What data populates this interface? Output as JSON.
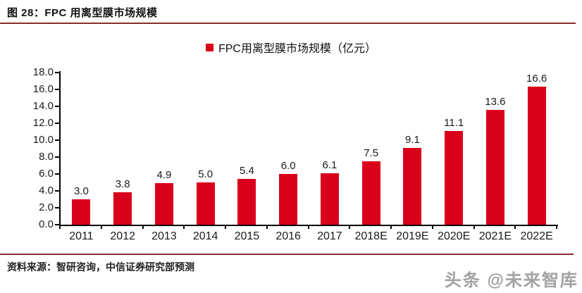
{
  "header": {
    "title": "图 28：FPC 用离型膜市场规模"
  },
  "legend": {
    "label": "FPC用离型膜市场规模（亿元）"
  },
  "chart_data": {
    "type": "bar",
    "title": "FPC用离型膜市场规模（亿元）",
    "categories": [
      "2011",
      "2012",
      "2013",
      "2014",
      "2015",
      "2016",
      "2017",
      "2018E",
      "2019E",
      "2020E",
      "2021E",
      "2022E"
    ],
    "values": [
      3.0,
      3.8,
      4.9,
      5.0,
      5.4,
      6.0,
      6.1,
      7.5,
      9.1,
      11.1,
      13.6,
      16.6
    ],
    "value_labels": [
      "3.0",
      "3.8",
      "4.9",
      "5.0",
      "5.4",
      "6.0",
      "6.1",
      "7.5",
      "9.1",
      "11.1",
      "13.6",
      "16.6"
    ],
    "xlabel": "",
    "ylabel": "",
    "ylim": [
      0,
      18
    ],
    "y_tick_step": 2,
    "y_tick_labels": [
      "0.0",
      "2.0",
      "4.0",
      "6.0",
      "8.0",
      "10.0",
      "12.0",
      "14.0",
      "16.0",
      "18.0"
    ],
    "grid": false,
    "legend_position": "top-center",
    "bar_color": "#d9001b"
  },
  "footer": {
    "source": "资料来源：智研咨询，中信证券研究部预测"
  },
  "watermark": {
    "text": "头条 @未来智库"
  },
  "colors": {
    "bar": "#d9001b",
    "rule": "#8c2b2b",
    "axis": "#000000",
    "label": "#1a1a1a"
  }
}
